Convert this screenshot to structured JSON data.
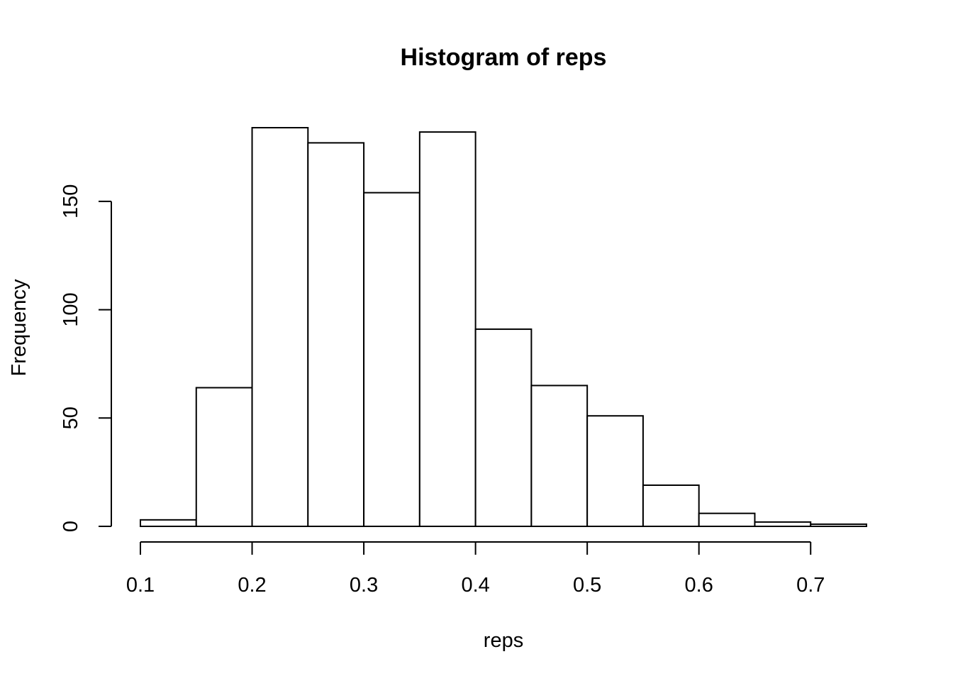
{
  "chart_data": {
    "type": "bar",
    "title": "Histogram of reps",
    "xlabel": "reps",
    "ylabel": "Frequency",
    "bins": [
      {
        "from": 0.1,
        "to": 0.15,
        "count": 3
      },
      {
        "from": 0.15,
        "to": 0.2,
        "count": 64
      },
      {
        "from": 0.2,
        "to": 0.25,
        "count": 184
      },
      {
        "from": 0.25,
        "to": 0.3,
        "count": 177
      },
      {
        "from": 0.3,
        "to": 0.35,
        "count": 154
      },
      {
        "from": 0.35,
        "to": 0.4,
        "count": 182
      },
      {
        "from": 0.4,
        "to": 0.45,
        "count": 91
      },
      {
        "from": 0.45,
        "to": 0.5,
        "count": 65
      },
      {
        "from": 0.5,
        "to": 0.55,
        "count": 51
      },
      {
        "from": 0.55,
        "to": 0.6,
        "count": 19
      },
      {
        "from": 0.6,
        "to": 0.65,
        "count": 6
      },
      {
        "from": 0.65,
        "to": 0.7,
        "count": 2
      },
      {
        "from": 0.7,
        "to": 0.75,
        "count": 1
      }
    ],
    "x_ticks": [
      0.1,
      0.2,
      0.3,
      0.4,
      0.5,
      0.6,
      0.7
    ],
    "x_tick_labels": [
      "0.1",
      "0.2",
      "0.3",
      "0.4",
      "0.5",
      "0.6",
      "0.7"
    ],
    "y_ticks": [
      0,
      50,
      100,
      150
    ],
    "y_tick_labels": [
      "0",
      "50",
      "100",
      "150"
    ],
    "xlim": [
      0.1,
      0.75
    ],
    "ylim": [
      0,
      184
    ],
    "grid": false,
    "legend": "none",
    "colors": {
      "bar_fill": "#ffffff",
      "bar_stroke": "#000000",
      "text": "#000000"
    }
  }
}
